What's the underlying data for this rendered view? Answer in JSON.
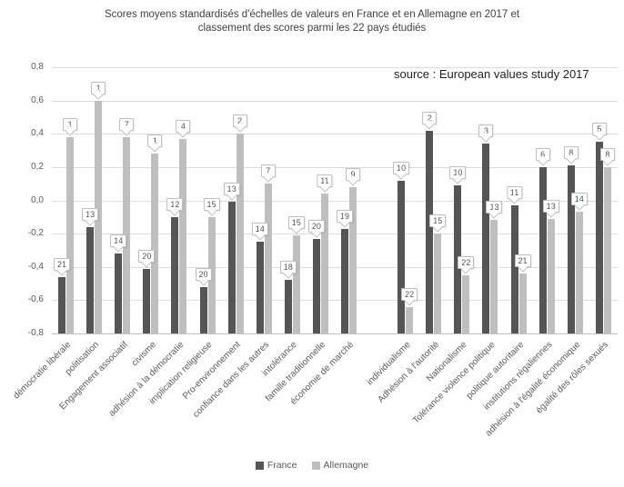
{
  "title_lines": [
    "Scores moyens standardisés d'échelles de valeurs en France et en Allemagne en 2017 et",
    "classement des scores parmi les 22 pays étudiés"
  ],
  "source": "source : European values study 2017",
  "colors": {
    "france": "#555555",
    "allemagne": "#bfbfbf",
    "gridline": "#dcdcdc",
    "axis_text": "#595959",
    "title_text": "#404040",
    "callout_text": "#44546a",
    "callout_border": "#bfbfbf"
  },
  "chart_data": {
    "type": "bar",
    "title": "Scores moyens standardisés d'échelles de valeurs en France et en Allemagne en 2017 et classement des scores parmi les 22 pays étudiés",
    "subtitle_note": "callout numbers above bars are ranks among the 22 countries studied",
    "source": "source : European values study 2017",
    "categories": [
      "démocratie libérale",
      "politisation",
      "Engagement associatif",
      "civisme",
      "adhésion à la démocratie",
      "implication religieuse",
      "Pro-environnement",
      "confiance dans les autres",
      "intolérance",
      "famille traditionnelle",
      "économie de marché",
      "individualisme",
      "Adhésion à l'autorité",
      "Nationalisme",
      "Tolérance violence politique",
      "politique autoritaire",
      "institutions régaliennes",
      "adhésion à l'égalité économique",
      "égalité des rôles sexués"
    ],
    "series": [
      {
        "name": "France",
        "values": [
          -0.46,
          -0.16,
          -0.32,
          -0.41,
          -0.1,
          -0.52,
          -0.01,
          -0.25,
          -0.48,
          -0.23,
          -0.17,
          0.12,
          0.42,
          0.09,
          0.34,
          -0.03,
          0.2,
          0.21,
          0.35
        ],
        "ranks": [
          21,
          13,
          14,
          20,
          12,
          20,
          13,
          14,
          18,
          20,
          19,
          10,
          2,
          10,
          3,
          11,
          6,
          8,
          5
        ]
      },
      {
        "name": "Allemagne",
        "values": [
          0.38,
          0.6,
          0.38,
          0.28,
          0.37,
          -0.1,
          0.4,
          0.1,
          -0.21,
          0.04,
          0.08,
          -0.64,
          -0.2,
          -0.45,
          -0.12,
          -0.44,
          -0.11,
          -0.07,
          0.2
        ],
        "ranks": [
          1,
          1,
          7,
          1,
          4,
          15,
          2,
          7,
          15,
          11,
          9,
          22,
          15,
          22,
          13,
          21,
          13,
          14,
          8
        ]
      }
    ],
    "gap_after_index": 10,
    "ylim": [
      -0.8,
      0.8
    ],
    "y_ticks": [
      "0,8",
      "0,6",
      "0,4",
      "0,2",
      "0,0",
      "-0,2",
      "-0,4",
      "-0,6",
      "-0,8"
    ],
    "grid": true,
    "bars_anchored_at": -0.8,
    "legend_position": "bottom"
  }
}
